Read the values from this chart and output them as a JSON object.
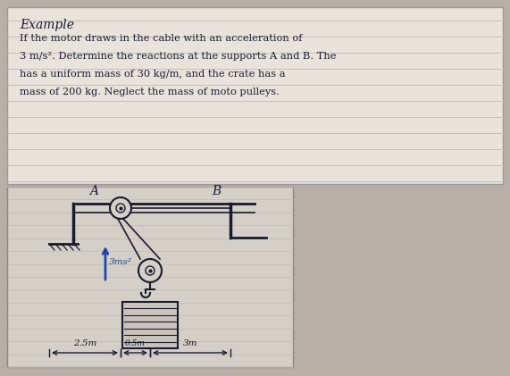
{
  "fig_bg": "#b8b0a8",
  "paper_bg": "#d8d4cc",
  "ruled_line_color": "#c0bab2",
  "ink": "#1a1a2e",
  "blue": "#2244aa",
  "title": "Example",
  "text_lines": [
    "If the motor draws in the cable with an acceleration of",
    "3 m/s². Determine the reactions at the supports A and B. The",
    "has a uniform mass of 30 kg/m, and the crate has a",
    "mass of 200 kg. Neglect the mass of moto pulleys."
  ],
  "label_A": "A",
  "label_B": "B",
  "accel_label": "3ms²",
  "dim_labels": [
    "2.5m",
    "0.5m",
    "3m"
  ]
}
